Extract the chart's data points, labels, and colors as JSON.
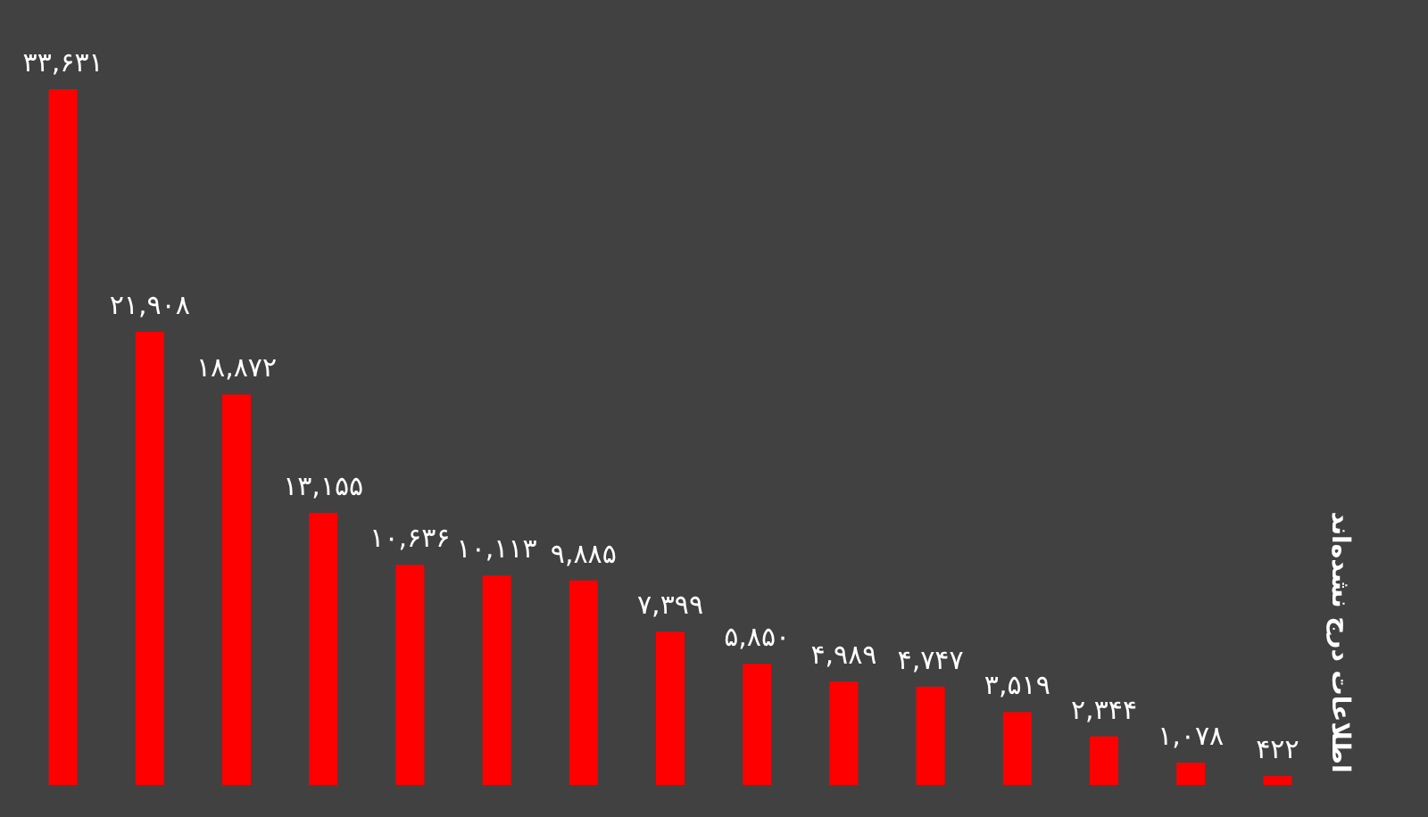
{
  "chart_data": {
    "type": "bar",
    "categories": [
      null,
      null,
      null,
      null,
      null,
      null,
      null,
      null,
      null,
      null,
      null,
      null,
      null,
      null,
      null
    ],
    "values": [
      33631,
      21908,
      18872,
      13155,
      10636,
      10113,
      9885,
      7399,
      5850,
      4989,
      4747,
      3519,
      2344,
      1078,
      422
    ],
    "value_labels": [
      "۳۳,۶۳۱",
      "۲۱,۹۰۸",
      "۱۸,۸۷۲",
      "۱۳,۱۵۵",
      "۱۰,۶۳۶",
      "۱۰,۱۱۳",
      "۹,۸۸۵",
      "۷,۳۹۹",
      "۵,۸۵۰",
      "۴,۹۸۹",
      "۴,۷۴۷",
      "۳,۵۱۹",
      "۲,۳۴۴",
      "۱,۰۷۸",
      "۴۲۲"
    ],
    "color": "#ff0000",
    "annotations": [
      "اطلاعات درج نشده‌اند"
    ],
    "grid": false,
    "legend": false
  }
}
